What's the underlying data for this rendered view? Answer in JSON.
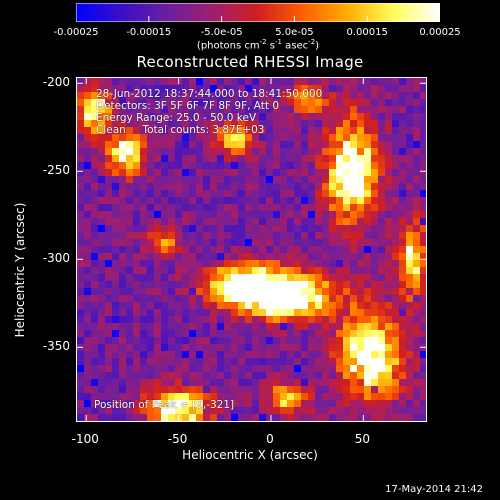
{
  "colorbar": {
    "tick_labels": [
      "-0.00025",
      "-0.00015",
      "-5.0e-05",
      "5.0e-05",
      "0.00015",
      "0.00025"
    ],
    "tick_values": [
      -0.00025,
      -0.00015,
      -5e-05,
      5e-05,
      0.00015,
      0.00025
    ],
    "unit_prefix": "(photons cm",
    "unit_exp1": "-2",
    "unit_mid1": " s",
    "unit_exp2": "-1",
    "unit_mid2": " asec",
    "unit_exp3": "-2",
    "unit_suffix": ")",
    "colors": [
      "#0000ff",
      "#3a0fc8",
      "#6a1fa0",
      "#a01e6e",
      "#d02020",
      "#ff6000",
      "#ffb000",
      "#ffff60",
      "#ffffff"
    ]
  },
  "title": "Reconstructed RHESSI Image",
  "info": {
    "line1": "28-Jun-2012 18:37:44.000 to 18:41:50.000",
    "line2": "Detectors: 3F 5F 6F 7F 8F 9F, Att 0",
    "line3": "Energy Range: 25.0 - 50.0 keV",
    "line4": "Clean     Total counts: 3.87E+03"
  },
  "peak_text": "Position of Peak = [9,-321]",
  "y_ticks": [
    {
      "label": "-200",
      "value": -200
    },
    {
      "label": "-250",
      "value": -250
    },
    {
      "label": "-300",
      "value": -300
    },
    {
      "label": "-350",
      "value": -350
    }
  ],
  "x_ticks": [
    {
      "label": "-100",
      "value": -100
    },
    {
      "label": "-50",
      "value": -50
    },
    {
      "label": "0",
      "value": 0
    },
    {
      "label": "50",
      "value": 50
    }
  ],
  "xlabel": "Heliocentric X (arcsec)",
  "ylabel": "Heliocentric Y (arcsec)",
  "timestamp": "17-May-2014 21:42",
  "image": {
    "xlim": [
      -105,
      85
    ],
    "ylim": [
      -393,
      -197
    ],
    "hotspots": [
      {
        "x": 9,
        "y": -321,
        "amp": 1.0,
        "sx": 18,
        "sy": 9
      },
      {
        "x": -15,
        "y": -315,
        "amp": 0.7,
        "sx": 14,
        "sy": 8
      },
      {
        "x": 45,
        "y": -250,
        "amp": 0.8,
        "sx": 10,
        "sy": 20
      },
      {
        "x": 55,
        "y": -355,
        "amp": 0.8,
        "sx": 12,
        "sy": 18
      },
      {
        "x": -78,
        "y": -240,
        "amp": 0.75,
        "sx": 7,
        "sy": 9
      },
      {
        "x": -50,
        "y": -385,
        "amp": 0.8,
        "sx": 12,
        "sy": 8
      },
      {
        "x": -95,
        "y": -215,
        "amp": 0.7,
        "sx": 6,
        "sy": 10
      },
      {
        "x": 78,
        "y": -300,
        "amp": 0.6,
        "sx": 6,
        "sy": 15
      },
      {
        "x": -20,
        "y": -232,
        "amp": 0.55,
        "sx": 8,
        "sy": 6
      },
      {
        "x": 10,
        "y": -380,
        "amp": 0.55,
        "sx": 8,
        "sy": 6
      },
      {
        "x": -58,
        "y": -290,
        "amp": 0.45,
        "sx": 7,
        "sy": 6
      },
      {
        "x": 20,
        "y": -210,
        "amp": 0.45,
        "sx": 8,
        "sy": 6
      }
    ]
  }
}
